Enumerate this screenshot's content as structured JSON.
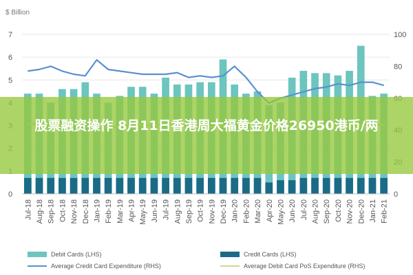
{
  "chart_data": {
    "type": "bar",
    "left_axis_unit": "$ Billion",
    "categories": [
      "Jul-18",
      "Aug-18",
      "Sep-18",
      "Oct-18",
      "Nov-18",
      "Dec-18",
      "Jan-19",
      "Feb-19",
      "Mar-19",
      "Apr-19",
      "May-19",
      "Jun-19",
      "Jul-19",
      "Aug-19",
      "Sep-19",
      "Oct-19",
      "Nov-19",
      "Dec-19",
      "Jan-20",
      "Feb-20",
      "Mar-20",
      "Apr-20",
      "May-20",
      "Jun-20",
      "Jul-20",
      "Aug-20",
      "Sep-20",
      "Oct-20",
      "Nov-20",
      "Dec-20",
      "Jan-21",
      "Feb-21"
    ],
    "ylim_left": [
      0,
      7
    ],
    "ylim_right": [
      0,
      100
    ],
    "yticks_left": [
      0,
      1,
      2,
      3,
      4,
      5,
      6,
      7
    ],
    "yticks_right": [
      0,
      20,
      40,
      60,
      80,
      100
    ],
    "series": [
      {
        "name": "Debit Cards (LHS)",
        "kind": "bar",
        "axis": "left",
        "color": "#6cc5bf",
        "values": [
          4.4,
          4.4,
          4.0,
          4.6,
          4.6,
          4.9,
          4.4,
          4.0,
          4.3,
          4.7,
          4.7,
          4.4,
          5.1,
          4.8,
          4.8,
          4.9,
          4.9,
          5.9,
          4.8,
          4.4,
          4.5,
          3.9,
          4.0,
          5.1,
          5.4,
          5.3,
          5.3,
          5.2,
          5.4,
          6.5,
          4.3,
          4.4
        ]
      },
      {
        "name": "Credit Cards (LHS)",
        "kind": "bar",
        "axis": "left",
        "color": "#1b6b87",
        "values": [
          0.7,
          0.7,
          0.7,
          0.7,
          0.7,
          0.7,
          0.7,
          0.7,
          0.7,
          0.7,
          0.7,
          0.7,
          0.7,
          0.7,
          0.7,
          0.7,
          0.7,
          0.7,
          0.7,
          0.7,
          0.7,
          0.5,
          0.6,
          0.6,
          0.7,
          0.7,
          0.7,
          0.7,
          0.7,
          0.7,
          0.7,
          0.7
        ]
      },
      {
        "name": "Average Credit Card Expenditure (RHS)",
        "kind": "line",
        "axis": "right",
        "color": "#5b8fd0",
        "values": [
          77,
          78,
          80,
          77,
          75,
          74,
          84,
          78,
          77,
          76,
          75,
          75,
          75,
          76,
          73,
          74,
          73,
          74,
          80,
          73,
          64,
          57,
          60,
          62,
          64,
          66,
          67,
          69,
          68,
          70,
          70,
          68
        ]
      },
      {
        "name": "Average Debit Card PoS Expenditure (RHS)",
        "kind": "line",
        "axis": "right",
        "color": "#c8d98a",
        "values": [
          44,
          44,
          43,
          43,
          44,
          44,
          44,
          42,
          42,
          43,
          43,
          43,
          44,
          43,
          42,
          43,
          42,
          43,
          45,
          44,
          44,
          43,
          42,
          43,
          44,
          43,
          42,
          42,
          43,
          43,
          44,
          43
        ]
      }
    ]
  },
  "legend": {
    "debit": "Debit Cards (LHS)",
    "credit": "Credit Cards (LHS)",
    "credit_exp": "Average Credit Card Expenditure (RHS)",
    "debit_pos": "Average Debit Card PoS Expenditure (RHS)"
  },
  "overlay_title": "股票融资操作 8月11日香港周大福黄金价格26950港币/两",
  "colors": {
    "debit": "#6cc5bf",
    "credit": "#1b6b87",
    "credit_line": "#5b8fd0",
    "debit_line": "#c8d98a",
    "overlay": "#96c83c"
  }
}
